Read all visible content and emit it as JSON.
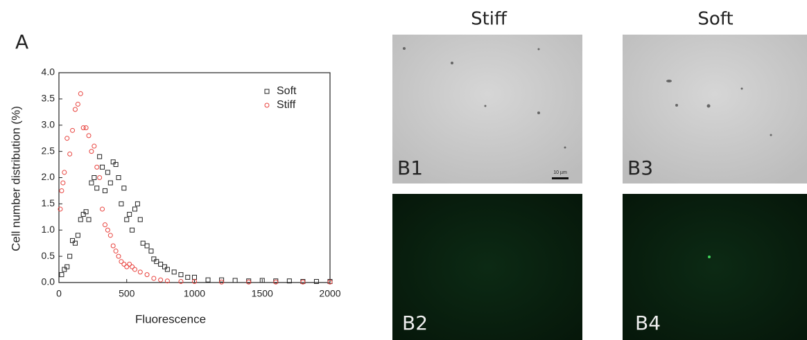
{
  "chart_data": {
    "type": "scatter",
    "panel_label": "A",
    "xlabel": "Fluorescence",
    "ylabel": "Cell number distribution (%)",
    "xlim": [
      0,
      2000
    ],
    "ylim": [
      0,
      4
    ],
    "xticks": [
      0,
      500,
      1000,
      1500,
      2000
    ],
    "yticks": [
      {
        "value": 0,
        "label": "0.0"
      },
      {
        "value": 0.5,
        "label": "0.5"
      },
      {
        "value": 1,
        "label": "1.0"
      },
      {
        "value": 1.5,
        "label": "1.5"
      },
      {
        "value": 2,
        "label": "2.0"
      },
      {
        "value": 2.5,
        "label": "2.5"
      },
      {
        "value": 3,
        "label": "3.0"
      },
      {
        "value": 3.5,
        "label": "3.5"
      },
      {
        "value": 4,
        "label": "4.0"
      }
    ],
    "legend": "upper right",
    "series": [
      {
        "name": "Soft",
        "color": "#222222",
        "marker": "square",
        "x": [
          20,
          40,
          60,
          80,
          100,
          120,
          140,
          160,
          180,
          200,
          220,
          240,
          260,
          280,
          300,
          320,
          340,
          360,
          380,
          400,
          420,
          440,
          460,
          480,
          500,
          520,
          540,
          560,
          580,
          600,
          620,
          650,
          680,
          700,
          720,
          750,
          780,
          800,
          850,
          900,
          950,
          1000,
          1100,
          1200,
          1300,
          1400,
          1500,
          1600,
          1700,
          1800,
          1900,
          2000
        ],
        "values": [
          0.15,
          0.25,
          0.3,
          0.5,
          0.8,
          0.75,
          0.9,
          1.2,
          1.3,
          1.35,
          1.2,
          1.9,
          2.0,
          1.8,
          2.4,
          2.2,
          1.75,
          2.1,
          1.9,
          2.3,
          2.25,
          2.0,
          1.5,
          1.8,
          1.2,
          1.3,
          1.0,
          1.4,
          1.5,
          1.2,
          0.75,
          0.7,
          0.6,
          0.45,
          0.4,
          0.35,
          0.3,
          0.25,
          0.2,
          0.15,
          0.1,
          0.1,
          0.05,
          0.05,
          0.04,
          0.03,
          0.04,
          0.03,
          0.03,
          0.02,
          0.02,
          0.02
        ]
      },
      {
        "name": "Stiff",
        "color": "#e8413c",
        "marker": "circle",
        "x": [
          10,
          20,
          30,
          40,
          60,
          80,
          100,
          120,
          140,
          160,
          180,
          200,
          220,
          240,
          260,
          280,
          300,
          320,
          340,
          360,
          380,
          400,
          420,
          440,
          460,
          480,
          500,
          520,
          540,
          560,
          600,
          650,
          700,
          750,
          800,
          900,
          1000,
          1200,
          1400,
          1600,
          1800,
          2000
        ],
        "values": [
          1.4,
          1.75,
          1.9,
          2.1,
          2.75,
          2.45,
          2.9,
          3.3,
          3.4,
          3.6,
          2.95,
          2.95,
          2.8,
          2.5,
          2.6,
          2.2,
          2.0,
          1.4,
          1.1,
          1.0,
          0.9,
          0.7,
          0.6,
          0.5,
          0.4,
          0.35,
          0.3,
          0.35,
          0.3,
          0.25,
          0.2,
          0.15,
          0.08,
          0.05,
          0.03,
          0.02,
          0.02,
          0.01,
          0.01,
          0.01,
          0.01,
          0.01
        ]
      }
    ]
  },
  "panels": {
    "columns": [
      "Stiff",
      "Soft"
    ],
    "labels": [
      "B1",
      "B2",
      "B3",
      "B4"
    ],
    "scale_bar": "10 µm"
  }
}
